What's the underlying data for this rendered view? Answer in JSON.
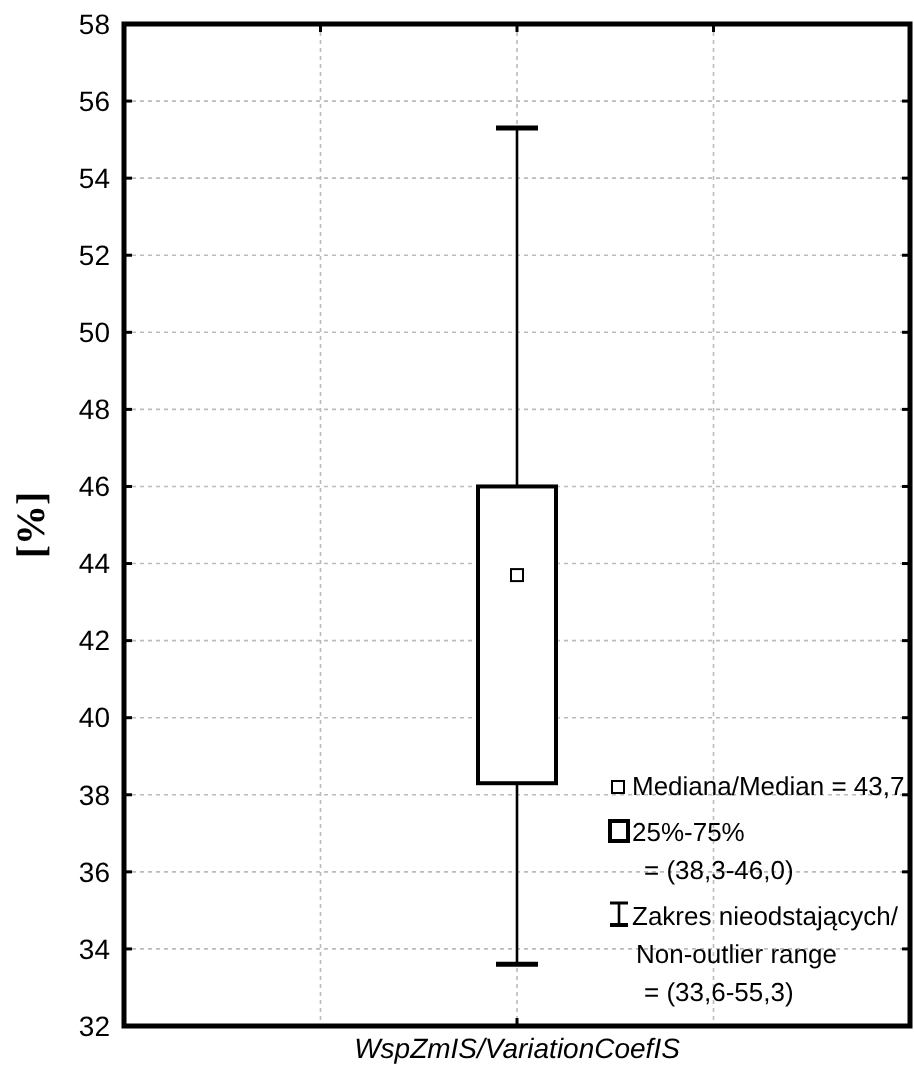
{
  "chart_data": {
    "type": "box",
    "categories": [
      "WspZmIS/VariationCoefIS"
    ],
    "ylabel": "[%]",
    "boxes": [
      {
        "low": 33.6,
        "q1": 38.3,
        "median": 43.7,
        "q3": 46.0,
        "high": 55.3
      }
    ],
    "ylim": [
      32,
      58
    ],
    "yticks": [
      32,
      34,
      36,
      38,
      40,
      42,
      44,
      46,
      48,
      50,
      52,
      54,
      56,
      58
    ],
    "grid": true,
    "marker": "square",
    "annotations": [
      "Mediana/Median = 43,7",
      "25%-75%\n= (38,3-46,0)",
      "Zakres nieodstających/\nNon-outlier range\n= (33,6-55,3)"
    ]
  }
}
